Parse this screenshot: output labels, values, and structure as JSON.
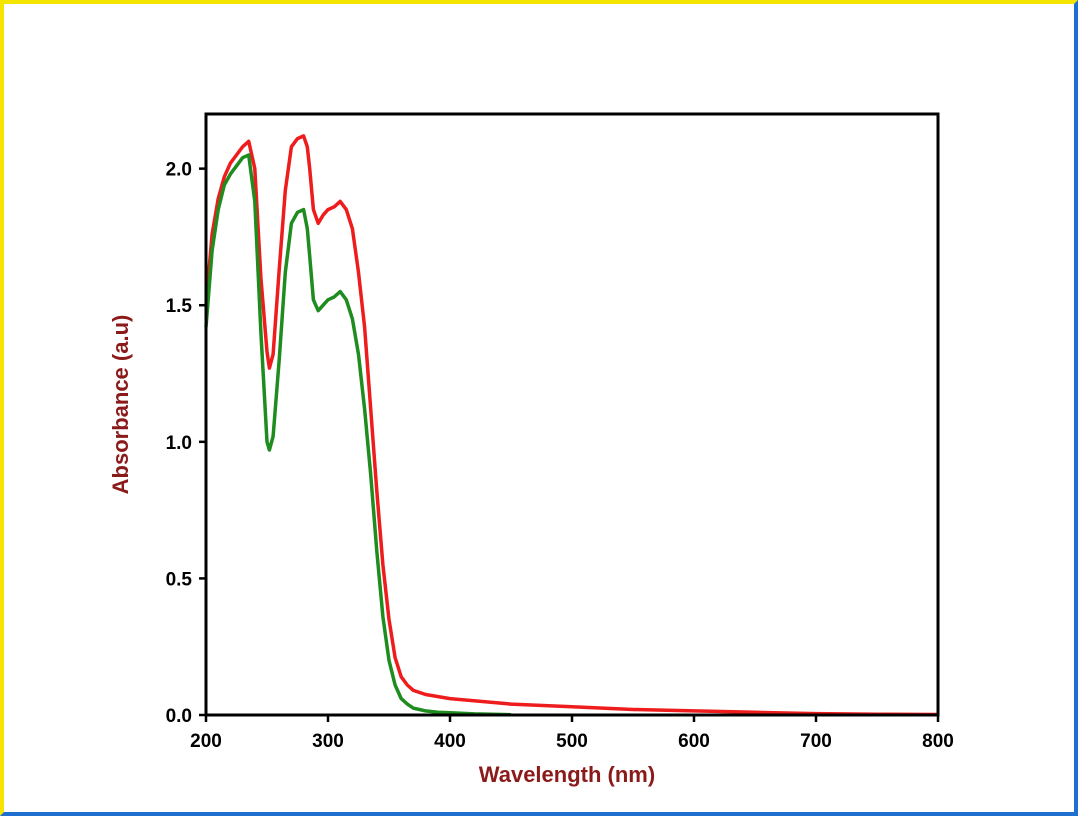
{
  "colors": {
    "axis_title": "#8b1a1a",
    "frame_top_left": "#f5e400",
    "frame_bottom_right": "#1f6fd0"
  },
  "chart_data": {
    "type": "line",
    "title": "",
    "xlabel": "Wavelength (nm)",
    "ylabel": "Absorbance (a.u)",
    "xlim": [
      200,
      800
    ],
    "ylim": [
      0,
      2.2
    ],
    "xticks": [
      200,
      300,
      400,
      500,
      600,
      700,
      800
    ],
    "xtick_labels": [
      "200",
      "300",
      "400",
      "500",
      "600",
      "700",
      "800"
    ],
    "yticks": [
      0,
      0.5,
      1.0,
      1.5,
      2.0
    ],
    "ytick_labels": [
      "0.0",
      "0.5",
      "1.0",
      "1.5",
      "2.0"
    ],
    "grid": false,
    "legend": "none",
    "series": [
      {
        "color": "#ee1c1c",
        "x": [
          200,
          205,
          210,
          215,
          220,
          225,
          230,
          235,
          240,
          245,
          250,
          252,
          255,
          260,
          265,
          270,
          275,
          280,
          283,
          285,
          288,
          292,
          296,
          300,
          305,
          310,
          315,
          320,
          325,
          330,
          335,
          340,
          345,
          350,
          355,
          360,
          365,
          370,
          380,
          400,
          450,
          500,
          550,
          600,
          650,
          700,
          750,
          800
        ],
        "y": [
          1.5,
          1.76,
          1.89,
          1.97,
          2.02,
          2.05,
          2.08,
          2.1,
          2.0,
          1.6,
          1.33,
          1.27,
          1.32,
          1.63,
          1.92,
          2.08,
          2.11,
          2.12,
          2.08,
          2.0,
          1.85,
          1.8,
          1.83,
          1.85,
          1.86,
          1.88,
          1.85,
          1.78,
          1.62,
          1.42,
          1.12,
          0.82,
          0.55,
          0.35,
          0.21,
          0.14,
          0.11,
          0.09,
          0.075,
          0.06,
          0.04,
          0.03,
          0.02,
          0.015,
          0.01,
          0.005,
          0.003,
          0.002
        ]
      },
      {
        "color": "#1e8c1e",
        "x": [
          200,
          205,
          210,
          215,
          220,
          225,
          230,
          235,
          240,
          245,
          250,
          252,
          255,
          260,
          265,
          270,
          275,
          280,
          283,
          285,
          288,
          292,
          296,
          300,
          305,
          310,
          315,
          320,
          325,
          330,
          335,
          340,
          345,
          350,
          355,
          360,
          365,
          370,
          375,
          380,
          390,
          400,
          420,
          450
        ],
        "y": [
          1.42,
          1.7,
          1.85,
          1.94,
          1.98,
          2.01,
          2.04,
          2.05,
          1.88,
          1.4,
          1.0,
          0.97,
          1.02,
          1.3,
          1.62,
          1.8,
          1.84,
          1.85,
          1.78,
          1.68,
          1.52,
          1.48,
          1.5,
          1.52,
          1.53,
          1.55,
          1.52,
          1.45,
          1.32,
          1.12,
          0.88,
          0.6,
          0.36,
          0.2,
          0.11,
          0.06,
          0.04,
          0.025,
          0.02,
          0.015,
          0.01,
          0.008,
          0.004,
          0.001
        ]
      }
    ]
  }
}
